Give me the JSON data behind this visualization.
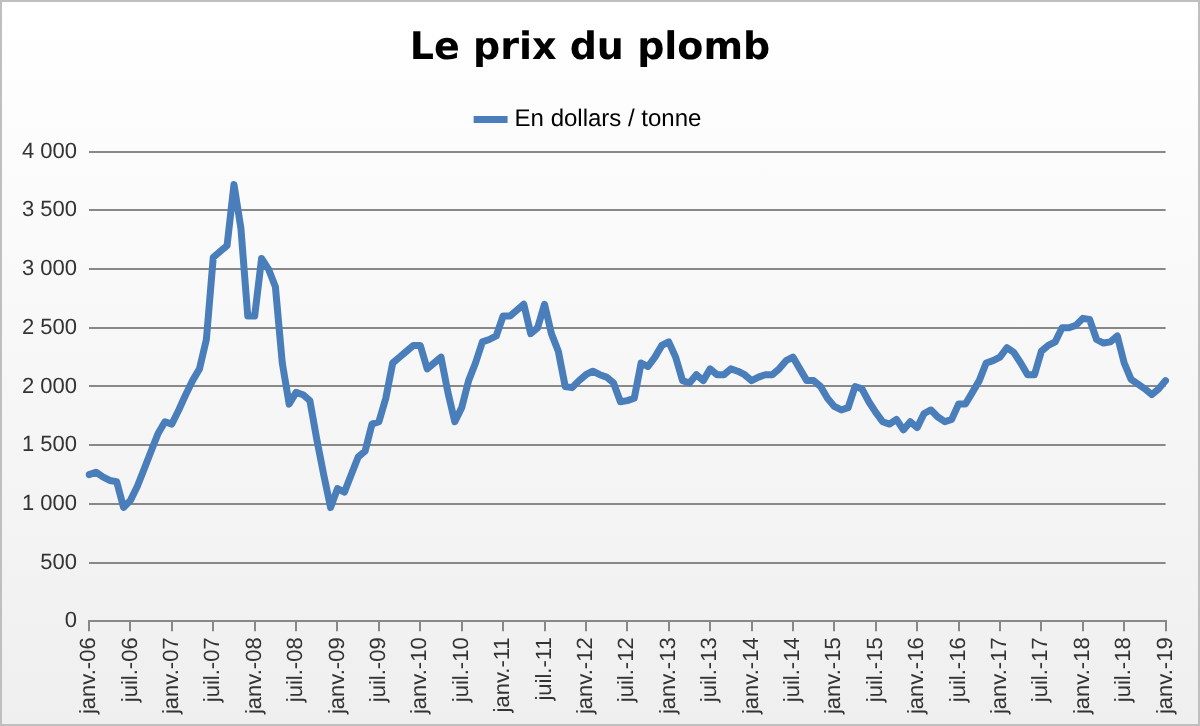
{
  "chart_data": {
    "type": "line",
    "title": "Le prix du plomb",
    "categories": [
      "janv.-06",
      null,
      null,
      null,
      null,
      null,
      "juil.-06",
      null,
      null,
      null,
      null,
      null,
      "janv.-07",
      null,
      null,
      null,
      null,
      null,
      "juil.-07",
      null,
      null,
      null,
      null,
      null,
      "janv.-08",
      null,
      null,
      null,
      null,
      null,
      "juil.-08",
      null,
      null,
      null,
      null,
      null,
      "janv.-09",
      null,
      null,
      null,
      null,
      null,
      "juil.-09",
      null,
      null,
      null,
      null,
      null,
      "janv.-10",
      null,
      null,
      null,
      null,
      null,
      "juil.-10",
      null,
      null,
      null,
      null,
      null,
      "janv.-11",
      null,
      null,
      null,
      null,
      null,
      "juil.-11",
      null,
      null,
      null,
      null,
      null,
      "janv.-12",
      null,
      null,
      null,
      null,
      null,
      "juil.-12",
      null,
      null,
      null,
      null,
      null,
      "janv.-13",
      null,
      null,
      null,
      null,
      null,
      "juil.-13",
      null,
      null,
      null,
      null,
      null,
      "janv.-14",
      null,
      null,
      null,
      null,
      null,
      "juil.-14",
      null,
      null,
      null,
      null,
      null,
      "janv.-15",
      null,
      null,
      null,
      null,
      null,
      "juil.-15",
      null,
      null,
      null,
      null,
      null,
      "janv.-16",
      null,
      null,
      null,
      null,
      null,
      "juil.-16",
      null,
      null,
      null,
      null,
      null,
      "janv.-17",
      null,
      null,
      null,
      null,
      null,
      "juil.-17",
      null,
      null,
      null,
      null,
      null,
      "janv.-18",
      null,
      null,
      null,
      null,
      null,
      "juil.-18",
      null,
      null,
      null,
      null,
      null,
      "janv.-19"
    ],
    "series": [
      {
        "name": "En dollars / tonne",
        "color": "#4a7ebb",
        "values": [
          1250,
          1270,
          1230,
          1200,
          1190,
          970,
          1030,
          1150,
          1300,
          1450,
          1600,
          1700,
          1680,
          1800,
          1930,
          2050,
          2150,
          2400,
          3100,
          3150,
          3200,
          3720,
          3350,
          2600,
          2600,
          3090,
          3000,
          2850,
          2200,
          1850,
          1950,
          1930,
          1880,
          1550,
          1250,
          970,
          1130,
          1100,
          1250,
          1400,
          1450,
          1680,
          1700,
          1900,
          2200,
          2250,
          2300,
          2350,
          2350,
          2150,
          2200,
          2250,
          1950,
          1700,
          1820,
          2050,
          2200,
          2380,
          2400,
          2430,
          2600,
          2600,
          2650,
          2700,
          2450,
          2500,
          2700,
          2450,
          2300,
          2000,
          1990,
          2050,
          2100,
          2130,
          2100,
          2080,
          2030,
          1870,
          1880,
          1900,
          2200,
          2170,
          2250,
          2350,
          2380,
          2250,
          2050,
          2030,
          2100,
          2050,
          2150,
          2100,
          2100,
          2150,
          2130,
          2100,
          2050,
          2080,
          2100,
          2100,
          2150,
          2220,
          2250,
          2150,
          2050,
          2050,
          2000,
          1900,
          1830,
          1800,
          1820,
          2000,
          1980,
          1870,
          1780,
          1700,
          1680,
          1720,
          1630,
          1700,
          1650,
          1770,
          1800,
          1740,
          1700,
          1720,
          1850,
          1850,
          1950,
          2050,
          2200,
          2220,
          2250,
          2330,
          2290,
          2200,
          2100,
          2100,
          2300,
          2350,
          2380,
          2500,
          2500,
          2520,
          2580,
          2570,
          2400,
          2370,
          2380,
          2430,
          2200,
          2060,
          2020,
          1980,
          1930,
          1980,
          2050
        ]
      }
    ],
    "ylim": [
      0,
      4000
    ],
    "yticks": [
      {
        "value": 0,
        "label": "0"
      },
      {
        "value": 500,
        "label": "500"
      },
      {
        "value": 1000,
        "label": "1 000"
      },
      {
        "value": 1500,
        "label": "1 500"
      },
      {
        "value": 2000,
        "label": "2 000"
      },
      {
        "value": 2500,
        "label": "2 500"
      },
      {
        "value": 3000,
        "label": "3 000"
      },
      {
        "value": 3500,
        "label": "3 500"
      },
      {
        "value": 4000,
        "label": "4 000"
      }
    ],
    "grid": "y",
    "legend": "top",
    "marker": "none",
    "line_style": "solid"
  }
}
